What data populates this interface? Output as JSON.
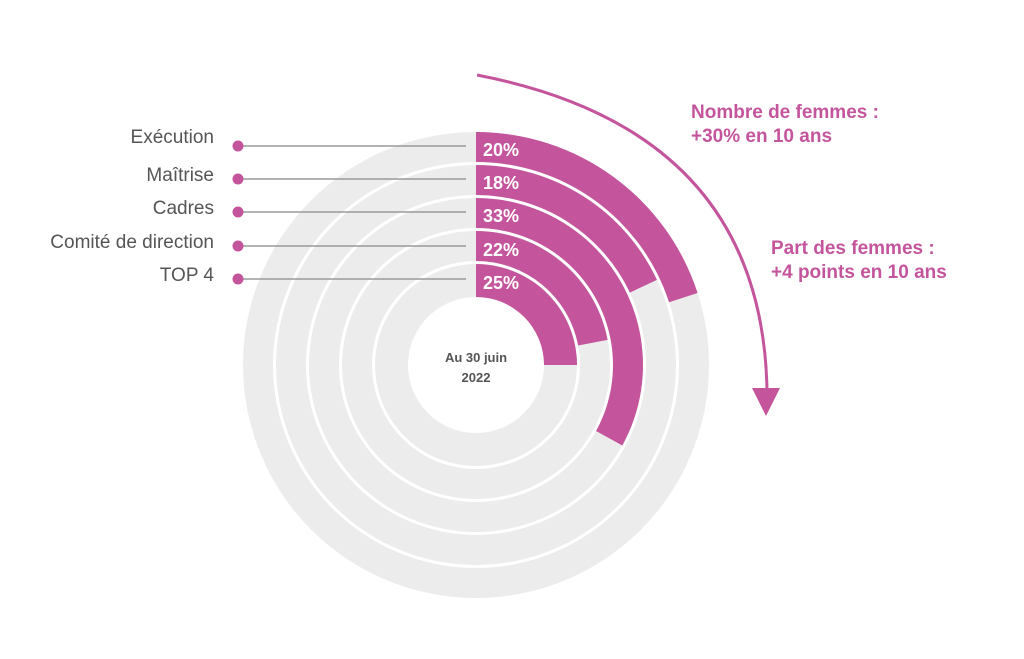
{
  "colors": {
    "accent": "#c4559c",
    "track": "#ececec",
    "leader": "#9a9a9a",
    "label": "#555555"
  },
  "chart_data": {
    "type": "radial-bar",
    "title": "",
    "categories": [
      "Exécution",
      "Maîtrise",
      "Cadres",
      "Comité de direction",
      "TOP 4"
    ],
    "values": [
      20,
      18,
      33,
      22,
      25
    ],
    "value_labels": [
      "20%",
      "18%",
      "33%",
      "22%",
      "25%"
    ],
    "unit": "%",
    "max": 100,
    "center_label": [
      "Au 30 juin",
      "2022"
    ],
    "annotations": [
      {
        "lines": [
          "Nombre de femmes :",
          "+30% en 10 ans"
        ]
      },
      {
        "lines": [
          "Part des femmes :",
          "+4 points en 10 ans"
        ]
      }
    ]
  }
}
